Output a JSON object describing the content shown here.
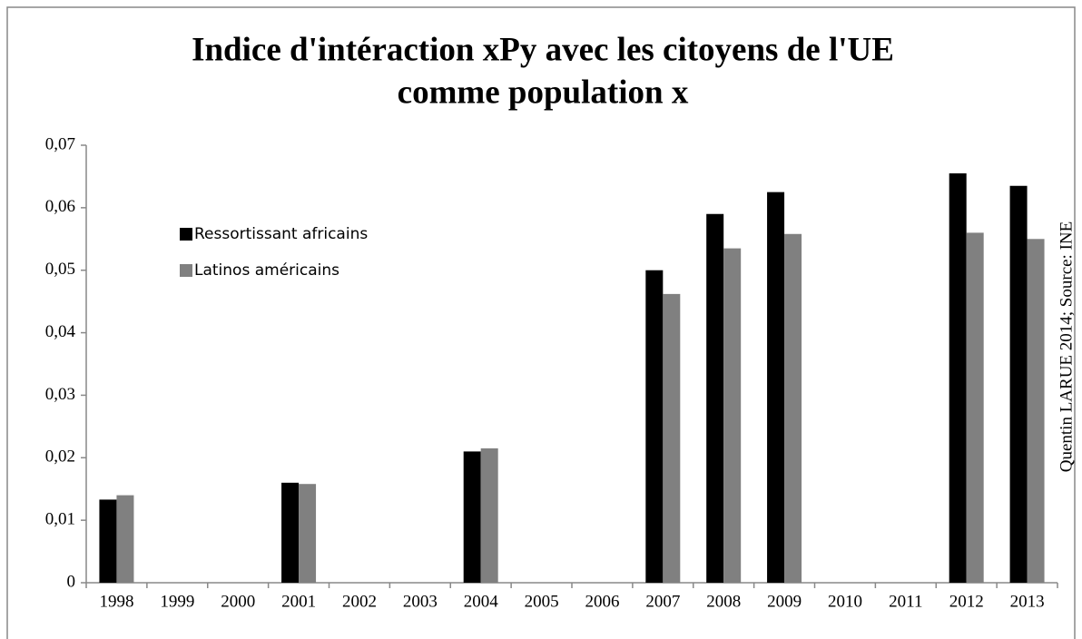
{
  "chart_data": {
    "type": "bar",
    "title": [
      "Indice d'intéraction xPy avec les citoyens de l'UE",
      "comme population x"
    ],
    "annotation": "Quentin LARUE 2014; Source: INE",
    "categories": [
      "1998",
      "1999",
      "2000",
      "2001",
      "2002",
      "2003",
      "2004",
      "2005",
      "2006",
      "2007",
      "2008",
      "2009",
      "2010",
      "2011",
      "2012",
      "2013"
    ],
    "series": [
      {
        "name": "Ressortissant africains",
        "color": "#000000",
        "values": [
          0.0133,
          null,
          null,
          0.016,
          null,
          null,
          0.021,
          null,
          null,
          0.05,
          0.059,
          0.0625,
          null,
          null,
          0.0655,
          0.0635
        ]
      },
      {
        "name": "Latinos américains",
        "color": "#808080",
        "values": [
          0.014,
          null,
          null,
          0.0158,
          null,
          null,
          0.0215,
          null,
          null,
          0.0462,
          0.0535,
          0.0558,
          null,
          null,
          0.056,
          0.055
        ]
      }
    ],
    "ylim": [
      0,
      0.07
    ],
    "yticks": [
      0,
      {
        "value": 0.01,
        "label": "0,01"
      },
      {
        "value": 0.02,
        "label": "0,02"
      },
      {
        "value": 0.03,
        "label": "0,03"
      },
      {
        "value": 0.04,
        "label": "0,04"
      },
      {
        "value": 0.05,
        "label": "0,05"
      },
      {
        "value": 0.06,
        "label": "0,06"
      },
      {
        "value": 0.07,
        "label": "0,07"
      }
    ],
    "legend": "upper left"
  }
}
